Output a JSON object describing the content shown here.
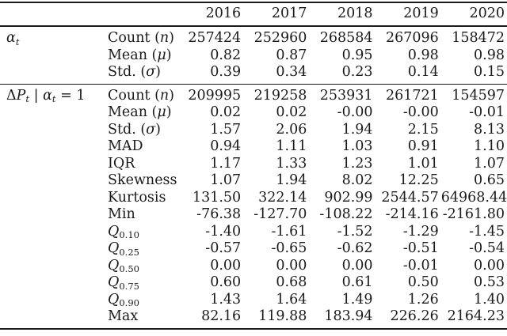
{
  "header": {
    "years": [
      "2016",
      "2017",
      "2018",
      "2019",
      "2020"
    ]
  },
  "sections": [
    {
      "group_label": "*α*_{*t*}",
      "rows": [
        {
          "stat": "Count (*n*)",
          "values": [
            "257424",
            "252960",
            "268584",
            "267096",
            "158472"
          ]
        },
        {
          "stat": "Mean (*μ*)",
          "values": [
            "0.82",
            "0.87",
            "0.95",
            "0.98",
            "0.98"
          ]
        },
        {
          "stat": "Std. (*σ*)",
          "values": [
            "0.39",
            "0.34",
            "0.23",
            "0.14",
            "0.15"
          ]
        }
      ]
    },
    {
      "group_label": "Δ*P*_{*t*} | *α*_{*t*} = 1",
      "rows": [
        {
          "stat": "Count (*n*)",
          "values": [
            "209995",
            "219258",
            "253931",
            "261721",
            "154597"
          ]
        },
        {
          "stat": "Mean (*μ*)",
          "values": [
            "0.02",
            "0.02",
            "-0.00",
            "-0.00",
            "-0.01"
          ]
        },
        {
          "stat": "Std. (*σ*)",
          "values": [
            "1.57",
            "2.06",
            "1.94",
            "2.15",
            "8.13"
          ]
        },
        {
          "stat": "MAD",
          "values": [
            "0.94",
            "1.11",
            "1.03",
            "0.91",
            "1.10"
          ]
        },
        {
          "stat": "IQR",
          "values": [
            "1.17",
            "1.33",
            "1.23",
            "1.01",
            "1.07"
          ]
        },
        {
          "stat": "Skewness",
          "values": [
            "1.07",
            "1.94",
            "8.02",
            "12.25",
            "0.65"
          ]
        },
        {
          "stat": "Kurtosis",
          "values": [
            "131.50",
            "322.14",
            "902.99",
            "2544.57",
            "64968.44"
          ]
        },
        {
          "stat": "Min",
          "values": [
            "-76.38",
            "-127.70",
            "-108.22",
            "-214.16",
            "-2161.80"
          ]
        },
        {
          "stat": "*Q*_{0.10}",
          "values": [
            "-1.40",
            "-1.61",
            "-1.52",
            "-1.29",
            "-1.45"
          ]
        },
        {
          "stat": "*Q*_{0.25}",
          "values": [
            "-0.57",
            "-0.65",
            "-0.62",
            "-0.51",
            "-0.54"
          ]
        },
        {
          "stat": "*Q*_{0.50}",
          "values": [
            "0.00",
            "0.00",
            "0.00",
            "-0.01",
            "0.00"
          ]
        },
        {
          "stat": "*Q*_{0.75}",
          "values": [
            "0.60",
            "0.68",
            "0.61",
            "0.50",
            "0.53"
          ]
        },
        {
          "stat": "*Q*_{0.90}",
          "values": [
            "1.43",
            "1.64",
            "1.49",
            "1.26",
            "1.40"
          ]
        },
        {
          "stat": "Max",
          "values": [
            "82.16",
            "119.88",
            "183.94",
            "226.26",
            "2164.23"
          ]
        }
      ]
    }
  ]
}
